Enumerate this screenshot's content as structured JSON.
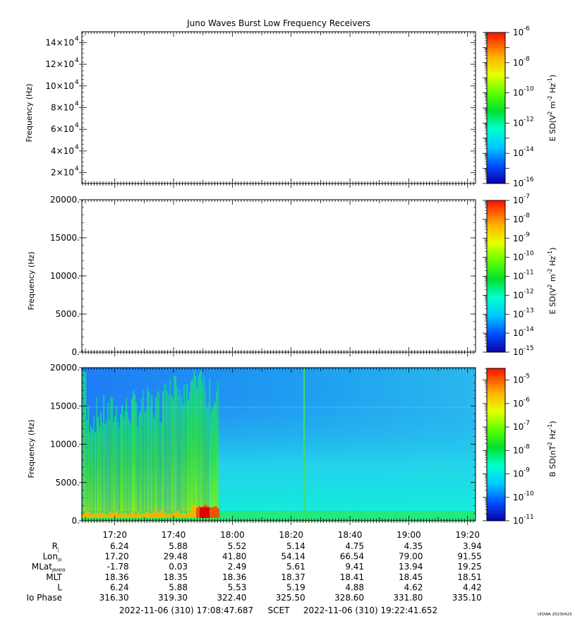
{
  "title": "Juno Waves Burst Low Frequency Receivers",
  "credit": "UIOWA 20230423",
  "chart_data": [
    {
      "type": "heatmap",
      "ylabel": "Frequency (Hz)",
      "yticks": [
        {
          "value": 20000,
          "base": "2×10",
          "exp": "4"
        },
        {
          "value": 40000,
          "base": "4×10",
          "exp": "4"
        },
        {
          "value": 60000,
          "base": "6×10",
          "exp": "4"
        },
        {
          "value": 80000,
          "base": "8×10",
          "exp": "4"
        },
        {
          "value": 100000,
          "base": "10×10",
          "exp": "4"
        },
        {
          "value": 120000,
          "base": "12×10",
          "exp": "4"
        },
        {
          "value": 140000,
          "base": "14×10",
          "exp": "4"
        }
      ],
      "ylim": [
        10000,
        150000
      ],
      "data_present": false,
      "colorbar": {
        "label": "E SD(V",
        "label_sup1": "2",
        "label_mid": " m",
        "label_sup2": "-2",
        "label_mid2": " Hz",
        "label_sup3": "-1",
        "label_end": ")",
        "exponents": [
          "-6",
          "-8",
          "-10",
          "-12",
          "-14",
          "-16"
        ],
        "log_range": [
          -16,
          -6
        ]
      }
    },
    {
      "type": "heatmap",
      "ylabel": "Frequency (Hz)",
      "yticks": [
        {
          "value": 0,
          "label": "0."
        },
        {
          "value": 5000,
          "label": "5000."
        },
        {
          "value": 10000,
          "label": "10000."
        },
        {
          "value": 15000,
          "label": "15000."
        },
        {
          "value": 20000,
          "label": "20000."
        }
      ],
      "ylim": [
        0,
        20000
      ],
      "data_present": false,
      "colorbar": {
        "label": "E SD(V",
        "label_sup1": "2",
        "label_mid": " m",
        "label_sup2": "-2",
        "label_mid2": " Hz",
        "label_sup3": "-1",
        "label_end": ")",
        "exponents": [
          "-7",
          "-8",
          "-9",
          "-10",
          "-11",
          "-12",
          "-13",
          "-14",
          "-15"
        ],
        "log_range": [
          -15,
          -7
        ]
      }
    },
    {
      "type": "heatmap",
      "ylabel": "Frequency (Hz)",
      "yticks": [
        {
          "value": 0,
          "label": "0."
        },
        {
          "value": 5000,
          "label": "5000."
        },
        {
          "value": 10000,
          "label": "10000."
        },
        {
          "value": 15000,
          "label": "15000."
        },
        {
          "value": 20000,
          "label": "20000."
        }
      ],
      "ylim": [
        0,
        20000
      ],
      "data_present": true,
      "burst_end_time": "17:55",
      "colorbar": {
        "label": "B SD(nT",
        "label_sup1": "2",
        "label_mid": " Hz",
        "label_sup2": "-1",
        "label_end": ")",
        "exponents": [
          "-5",
          "-6",
          "-7",
          "-8",
          "-9",
          "-10",
          "-11"
        ],
        "log_range": [
          -11,
          -4.5
        ]
      }
    }
  ],
  "x_axis": {
    "start_minutes": 1028.8,
    "end_minutes": 1162.7,
    "tick_labels": [
      "17:20",
      "17:40",
      "18:00",
      "18:20",
      "18:40",
      "19:00",
      "19:20"
    ]
  },
  "ephemeris": {
    "rows": [
      {
        "label": "R",
        "sub": "j",
        "values": [
          "6.24",
          "5.88",
          "5.52",
          "5.14",
          "4.75",
          "4.35",
          "3.94"
        ]
      },
      {
        "label": "Lon",
        "sub": "III",
        "values": [
          "17.20",
          "29.48",
          "41.80",
          "54.14",
          "66.54",
          "79.00",
          "91.55"
        ]
      },
      {
        "label": "MLat",
        "sub": "JRM09",
        "values": [
          "-1.78",
          "0.03",
          "2.49",
          "5.61",
          "9.41",
          "13.94",
          "19.25"
        ]
      },
      {
        "label": "MLT",
        "sub": "",
        "values": [
          "18.36",
          "18.35",
          "18.36",
          "18.37",
          "18.41",
          "18.45",
          "18.51"
        ]
      },
      {
        "label": "L",
        "sub": "",
        "values": [
          "6.24",
          "5.88",
          "5.53",
          "5.19",
          "4.88",
          "4.62",
          "4.42"
        ]
      },
      {
        "label": "Io Phase",
        "sub": "",
        "values": [
          "316.30",
          "319.30",
          "322.40",
          "325.50",
          "328.60",
          "331.80",
          "335.10"
        ]
      }
    ]
  },
  "footer": {
    "start": "2022-11-06 (310) 17:08:47.687",
    "scet": "SCET",
    "end": "2022-11-06 (310) 19:22:41.652"
  }
}
